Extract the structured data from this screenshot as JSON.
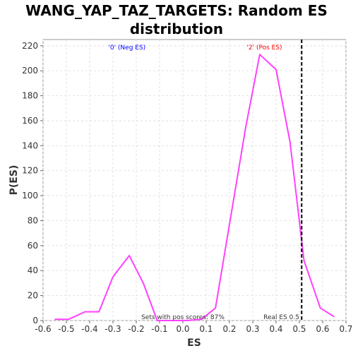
{
  "chart_data": {
    "type": "line",
    "title_line1": "WANG_YAP_TAZ_TARGETS: Random ES",
    "title_line2": "distribution",
    "xlabel": "ES",
    "ylabel": "P(ES)",
    "xlim": [
      -0.6,
      0.7
    ],
    "ylim": [
      0,
      225
    ],
    "x_ticks": [
      "-0.6",
      "-0.5",
      "-0.4",
      "-0.3",
      "-0.2",
      "-0.1",
      "0.0",
      "0.1",
      "0.2",
      "0.3",
      "0.4",
      "0.5",
      "0.6",
      "0.7"
    ],
    "x_tick_values": [
      -0.6,
      -0.5,
      -0.4,
      -0.3,
      -0.2,
      -0.1,
      0.0,
      0.1,
      0.2,
      0.3,
      0.4,
      0.5,
      0.6,
      0.7
    ],
    "y_ticks": [
      "0",
      "20",
      "40",
      "60",
      "80",
      "100",
      "120",
      "140",
      "160",
      "180",
      "200",
      "220"
    ],
    "y_tick_values": [
      0,
      20,
      40,
      60,
      80,
      100,
      120,
      140,
      160,
      180,
      200,
      220
    ],
    "grid": true,
    "series": [
      {
        "color": "#ff40ff",
        "x": [
          -0.55,
          -0.49,
          -0.42,
          -0.36,
          -0.3,
          -0.23,
          -0.17,
          -0.11,
          -0.04,
          0.02,
          0.08,
          0.14,
          0.21,
          0.27,
          0.33,
          0.4,
          0.46,
          0.52,
          0.59,
          0.65
        ],
        "y": [
          1,
          1,
          7,
          7,
          35,
          52,
          30,
          0,
          0,
          0,
          1,
          10,
          88,
          155,
          213,
          201,
          143,
          48,
          10,
          3
        ]
      }
    ],
    "real_es": 0.51,
    "annotations": {
      "neg": {
        "text": "'0' (Neg ES)",
        "x": -0.24,
        "y": 217,
        "color": "#0000ff"
      },
      "pos": {
        "text": "'2' (Pos ES)",
        "x": 0.35,
        "y": 217,
        "color": "#ff0000"
      },
      "sets": {
        "text": "Sets with pos scores: 87%",
        "x": 0.0,
        "y": 1,
        "color": "#333333"
      },
      "real": {
        "text": "Real ES 0.5",
        "x": 0.5,
        "y": 1,
        "color": "#333333"
      }
    }
  }
}
